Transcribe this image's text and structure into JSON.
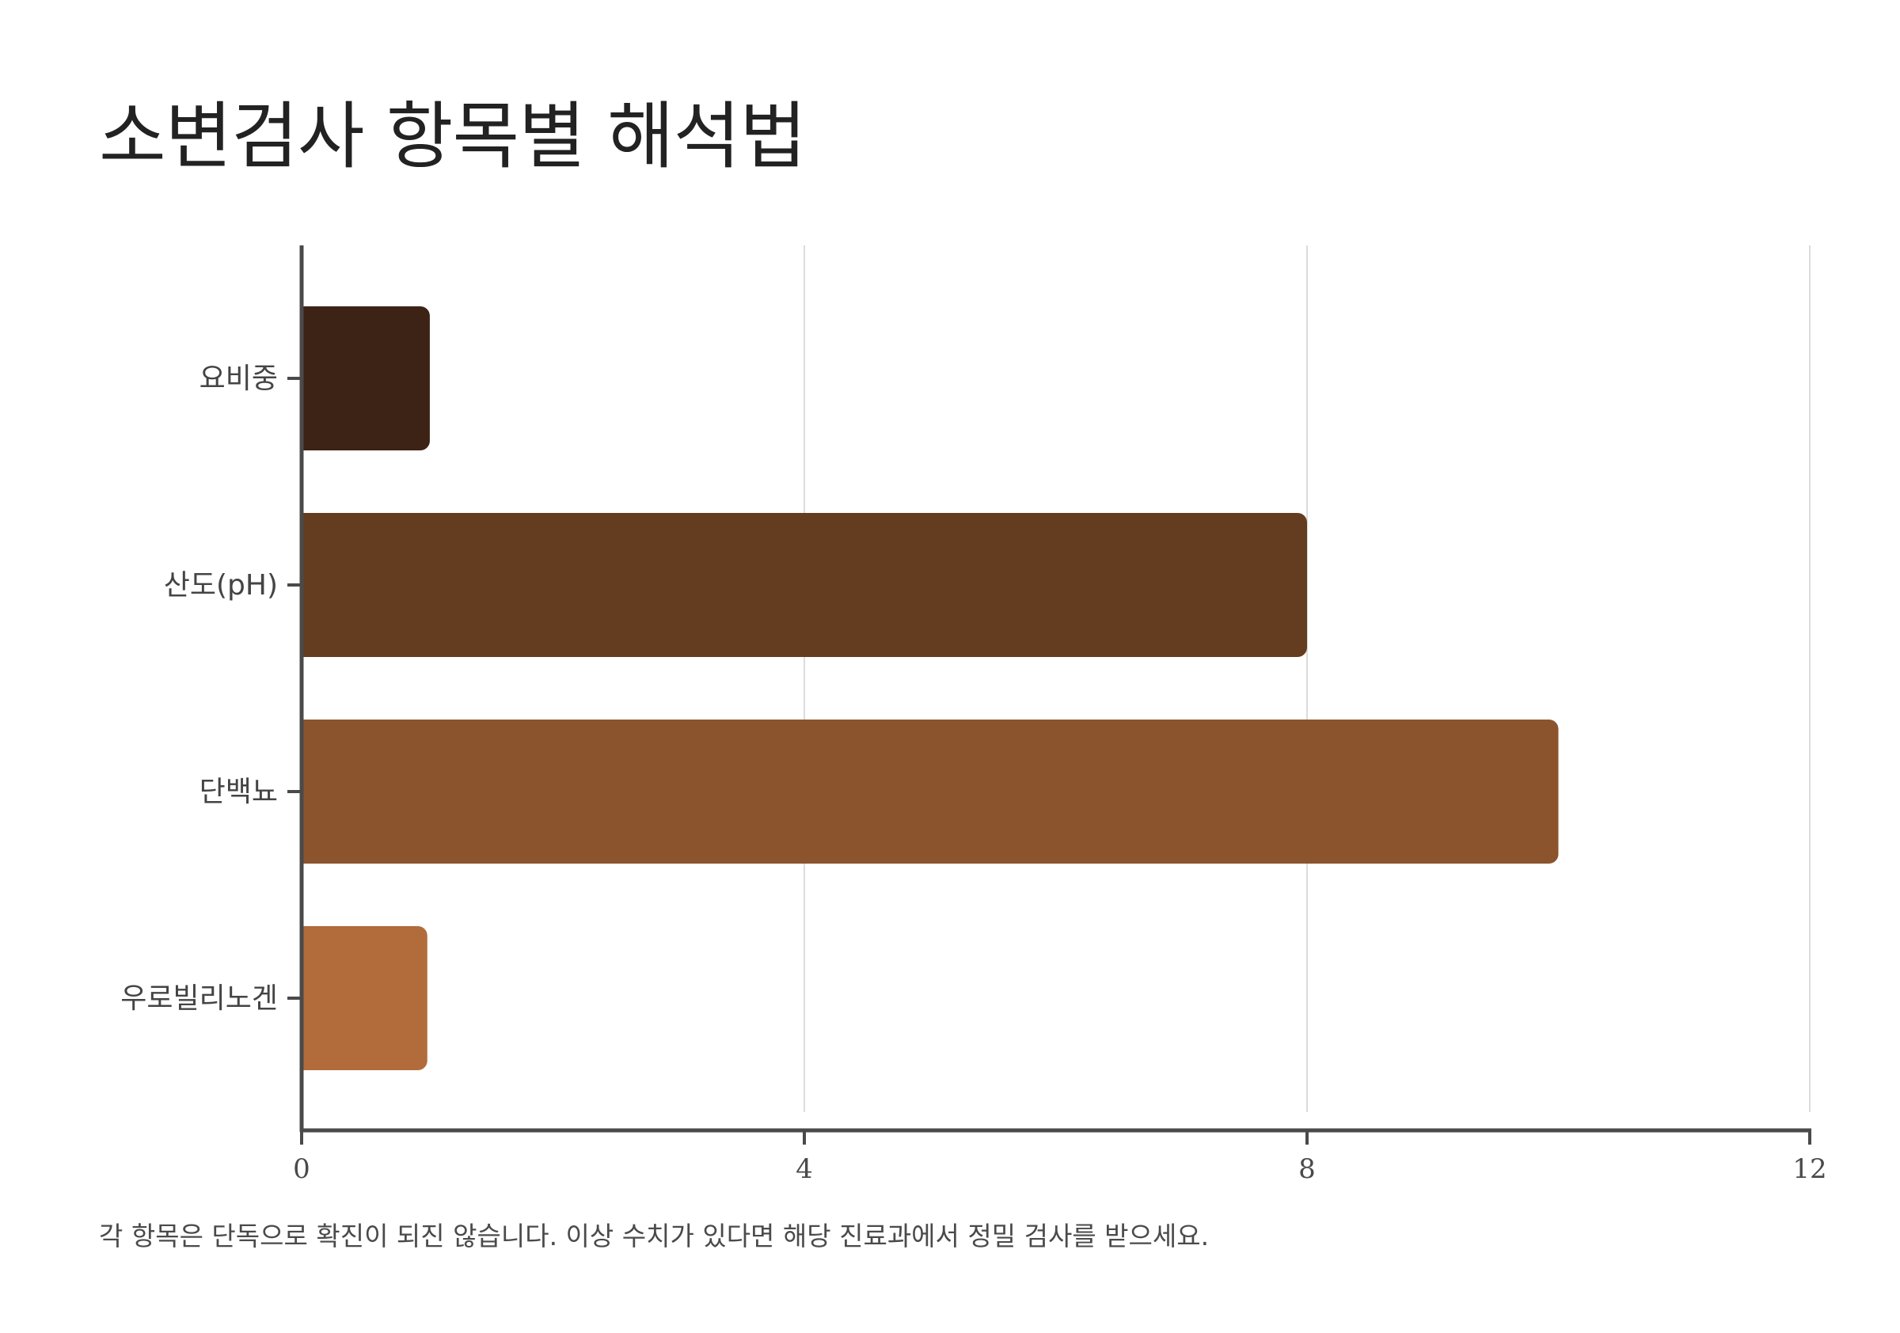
{
  "chart_data": {
    "type": "bar",
    "orientation": "horizontal",
    "title": "소변검사 항목별 해석법",
    "footnote": "각 항목은 단독으로 확진이 되진 않습니다. 이상 수치가 있다면 해당 진료과에서 정밀 검사를 받으세요.",
    "categories": [
      "요비중",
      "산도(pH)",
      "단백뇨",
      "우로빌리노겐"
    ],
    "values": [
      1.02,
      8,
      10,
      1
    ],
    "colors": [
      "#3d2316",
      "#643c20",
      "#8b542d",
      "#b26b3b"
    ],
    "xlim": [
      0,
      12
    ],
    "xticks": [
      0,
      4,
      8,
      12
    ],
    "xtick_labels": [
      "0",
      "4",
      "8",
      "12"
    ],
    "grid": true,
    "legend": "none"
  }
}
